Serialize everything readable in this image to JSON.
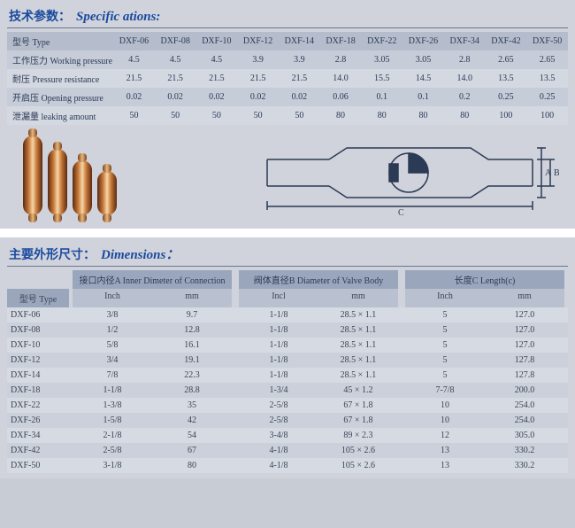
{
  "spec": {
    "title_zh": "技术参数：",
    "title_en": "Specific ations:",
    "type_label": "型号 Type",
    "models": [
      "DXF-06",
      "DXF-08",
      "DXF-10",
      "DXF-12",
      "DXF-14",
      "DXF-18",
      "DXF-22",
      "DXF-26",
      "DXF-34",
      "DXF-42",
      "DXF-50"
    ],
    "rows": [
      {
        "label": "工作压力 Working pressure",
        "vals": [
          "4.5",
          "4.5",
          "4.5",
          "3.9",
          "3.9",
          "2.8",
          "3.05",
          "3.05",
          "2.8",
          "2.65",
          "2.65"
        ]
      },
      {
        "label": "耐压 Pressure resistance",
        "vals": [
          "21.5",
          "21.5",
          "21.5",
          "21.5",
          "21.5",
          "14.0",
          "15.5",
          "14.5",
          "14.0",
          "13.5",
          "13.5"
        ]
      },
      {
        "label": "开启压 Opening pressure",
        "vals": [
          "0.02",
          "0.02",
          "0.02",
          "0.02",
          "0.02",
          "0.06",
          "0.1",
          "0.1",
          "0.2",
          "0.25",
          "0.25"
        ]
      },
      {
        "label": "泄漏量 leaking amount",
        "vals": [
          "50",
          "50",
          "50",
          "50",
          "50",
          "80",
          "80",
          "80",
          "80",
          "100",
          "100"
        ]
      }
    ],
    "diagram_labels": {
      "A": "A",
      "B": "B",
      "C": "C"
    }
  },
  "dim": {
    "title_zh": "主要外形尺寸：",
    "title_en": "Dimensions：",
    "type_label": "型号 Type",
    "groups": [
      {
        "label": "接口内径A Inner Dimeter of Connection",
        "inch": "Inch",
        "mm": "mm"
      },
      {
        "label": "阀体直径B Diameter of Valve Body",
        "inch": "Incl",
        "mm": "mm"
      },
      {
        "label": "长度C Length(c)",
        "inch": "Inch",
        "mm": "mm"
      }
    ],
    "rows": [
      {
        "type": "DXF-06",
        "vals": [
          "3/8",
          "9.7",
          "1-1/8",
          "28.5 × 1.1",
          "5",
          "127.0"
        ]
      },
      {
        "type": "DXF-08",
        "vals": [
          "1/2",
          "12.8",
          "1-1/8",
          "28.5 × 1.1",
          "5",
          "127.0"
        ]
      },
      {
        "type": "DXF-10",
        "vals": [
          "5/8",
          "16.1",
          "1-1/8",
          "28.5 × 1.1",
          "5",
          "127.0"
        ]
      },
      {
        "type": "DXF-12",
        "vals": [
          "3/4",
          "19.1",
          "1-1/8",
          "28.5 × 1.1",
          "5",
          "127.8"
        ]
      },
      {
        "type": "DXF-14",
        "vals": [
          "7/8",
          "22.3",
          "1-1/8",
          "28.5 × 1.1",
          "5",
          "127.8"
        ]
      },
      {
        "type": "DXF-18",
        "vals": [
          "1-1/8",
          "28.8",
          "1-3/4",
          "45 × 1.2",
          "7-7/8",
          "200.0"
        ]
      },
      {
        "type": "DXF-22",
        "vals": [
          "1-3/8",
          "35",
          "2-5/8",
          "67 × 1.8",
          "10",
          "254.0"
        ]
      },
      {
        "type": "DXF-26",
        "vals": [
          "1-5/8",
          "42",
          "2-5/8",
          "67 × 1.8",
          "10",
          "254.0"
        ]
      },
      {
        "type": "DXF-34",
        "vals": [
          "2-1/8",
          "54",
          "3-4/8",
          "89 × 2.3",
          "12",
          "305.0"
        ]
      },
      {
        "type": "DXF-42",
        "vals": [
          "2-5/8",
          "67",
          "4-1/8",
          "105 × 2.6",
          "13",
          "330.2"
        ]
      },
      {
        "type": "DXF-50",
        "vals": [
          "3-1/8",
          "80",
          "4-1/8",
          "105 × 2.6",
          "13",
          "330.2"
        ]
      }
    ]
  }
}
